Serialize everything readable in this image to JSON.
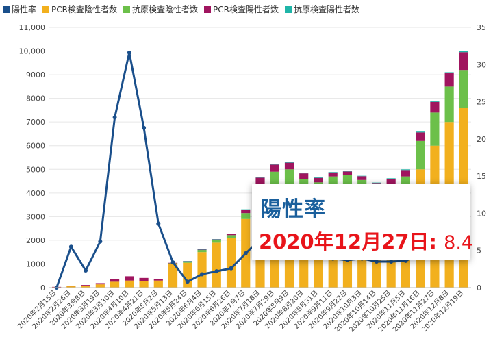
{
  "legend": {
    "items": [
      {
        "key": "positivity_rate",
        "label": "陽性率",
        "color": "#1a4f8b"
      },
      {
        "key": "pcr_negative",
        "label": "PCR検査陰性者数",
        "color": "#f2b01e"
      },
      {
        "key": "antigen_negative",
        "label": "抗原検査陰性者数",
        "color": "#6cc04a"
      },
      {
        "key": "pcr_positive",
        "label": "PCR検査陽性者数",
        "color": "#a0155f"
      },
      {
        "key": "antigen_positive",
        "label": "抗原検査陽性者数",
        "color": "#1fb5a8"
      }
    ]
  },
  "tooltip": {
    "title": "陽性率",
    "date_label": "2020年12月27日:",
    "value": "8.4"
  },
  "chart_data": {
    "type": "bar",
    "title": "",
    "xlabel": "",
    "ylabel": "",
    "ylim": [
      0,
      11000
    ],
    "y2lim": [
      0,
      35
    ],
    "yticks": [
      0,
      1000,
      2000,
      3000,
      4000,
      5000,
      6000,
      7000,
      8000,
      9000,
      10000,
      11000
    ],
    "yticklabels": [
      "0",
      "1000",
      "2000",
      "3000",
      "4000",
      "5000",
      "6000",
      "7000",
      "8000",
      "9000",
      "10,000",
      "11,000"
    ],
    "y2ticks": [
      0,
      5,
      10,
      15,
      20,
      25,
      30,
      35
    ],
    "y2ticklabels": [
      "0",
      "5",
      "10",
      "15",
      "20",
      "25",
      "30",
      "35"
    ],
    "categories": [
      "2020年2月15日",
      "2020年2月26日",
      "2020年3月8日",
      "2020年3月19日",
      "2020年3月30日",
      "2020年4月10日",
      "2020年4月21日",
      "2020年5月2日",
      "2020年5月13日",
      "2020年5月24日",
      "2020年6月4日",
      "2020年6月15日",
      "2020年6月26日",
      "2020年7月7日",
      "2020年7月18日",
      "2020年7月29日",
      "2020年8月9日",
      "2020年8月20日",
      "2020年8月31日",
      "2020年9月11日",
      "2020年9月22日",
      "2020年10月3日",
      "2020年10月14日",
      "2020年10月25日",
      "2020年11月5日",
      "2020年11月16日",
      "2020年11月27日",
      "2020年12月8日",
      "2020年12月19日"
    ],
    "series": [
      {
        "name": "PCR検査陰性者数",
        "axis": "left",
        "values": [
          30,
          60,
          90,
          140,
          250,
          300,
          280,
          300,
          1000,
          1050,
          1500,
          1900,
          2100,
          2900,
          3900,
          4300,
          4300,
          3900,
          3700,
          3900,
          3900,
          3700,
          3500,
          3600,
          3800,
          5000,
          6000,
          7000,
          7600
        ]
      },
      {
        "name": "抗原検査陰性者数",
        "axis": "left",
        "values": [
          0,
          0,
          0,
          0,
          0,
          0,
          0,
          0,
          30,
          60,
          90,
          100,
          120,
          250,
          500,
          600,
          700,
          700,
          750,
          800,
          850,
          850,
          750,
          800,
          900,
          1200,
          1400,
          1500,
          1600
        ]
      },
      {
        "name": "PCR検査陽性者数",
        "axis": "left",
        "values": [
          3,
          10,
          25,
          50,
          110,
          180,
          130,
          60,
          20,
          10,
          25,
          45,
          60,
          150,
          250,
          300,
          280,
          230,
          190,
          170,
          160,
          160,
          170,
          200,
          270,
          360,
          450,
          560,
          750
        ]
      },
      {
        "name": "抗原検査陽性者数",
        "axis": "left",
        "values": [
          0,
          0,
          0,
          0,
          0,
          0,
          0,
          0,
          0,
          2,
          3,
          4,
          5,
          10,
          20,
          25,
          25,
          20,
          20,
          18,
          18,
          18,
          20,
          22,
          28,
          35,
          40,
          45,
          60
        ]
      },
      {
        "name": "陽性率",
        "axis": "right",
        "type": "line",
        "values": [
          0,
          5.5,
          2.3,
          6.2,
          22.9,
          31.6,
          21.5,
          8.6,
          3.4,
          0.8,
          1.8,
          2.2,
          2.6,
          4.6,
          6.5,
          6.7,
          6.2,
          5.2,
          4.2,
          3.9,
          3.7,
          3.9,
          3.5,
          3.5,
          3.6,
          4.5,
          5.3,
          6.3,
          7.6
        ]
      }
    ]
  }
}
